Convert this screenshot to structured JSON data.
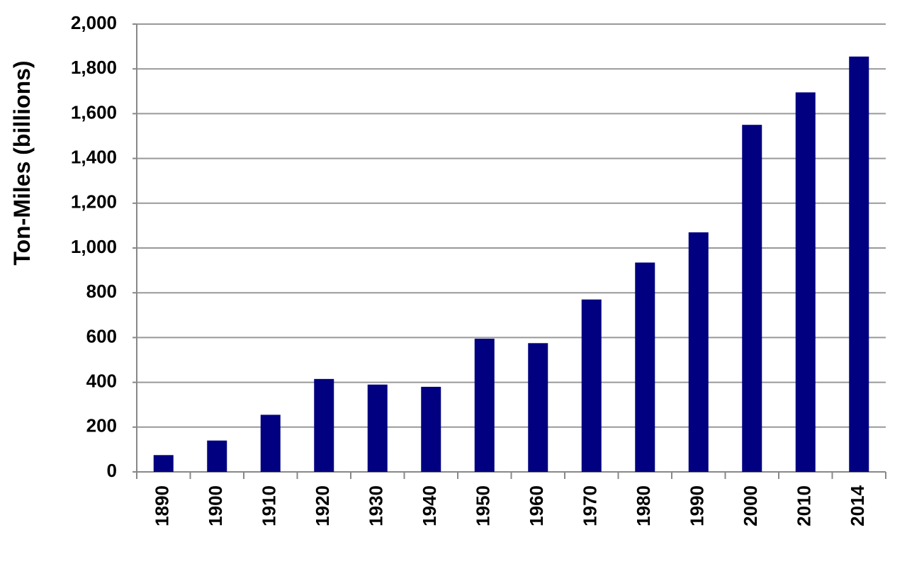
{
  "chart_data": {
    "type": "bar",
    "y_label": "Ton-Miles (billions)",
    "categories": [
      "1890",
      "1900",
      "1910",
      "1920",
      "1930",
      "1940",
      "1950",
      "1960",
      "1970",
      "1980",
      "1990",
      "2000",
      "2010",
      "2014"
    ],
    "values": [
      75,
      140,
      255,
      415,
      390,
      380,
      595,
      575,
      770,
      935,
      1070,
      1550,
      1695,
      1855
    ],
    "color": "#000080",
    "ylim": [
      0,
      2000
    ],
    "yticks": [
      0,
      200,
      400,
      600,
      800,
      {
        "value": 1000,
        "label": "1,000"
      },
      {
        "value": 1200,
        "label": "1,200"
      },
      {
        "value": 1400,
        "label": "1,400"
      },
      {
        "value": 1600,
        "label": "1,600"
      },
      {
        "value": 1800,
        "label": "1,800"
      },
      {
        "value": 2000,
        "label": "2,000"
      }
    ],
    "grid": true
  }
}
